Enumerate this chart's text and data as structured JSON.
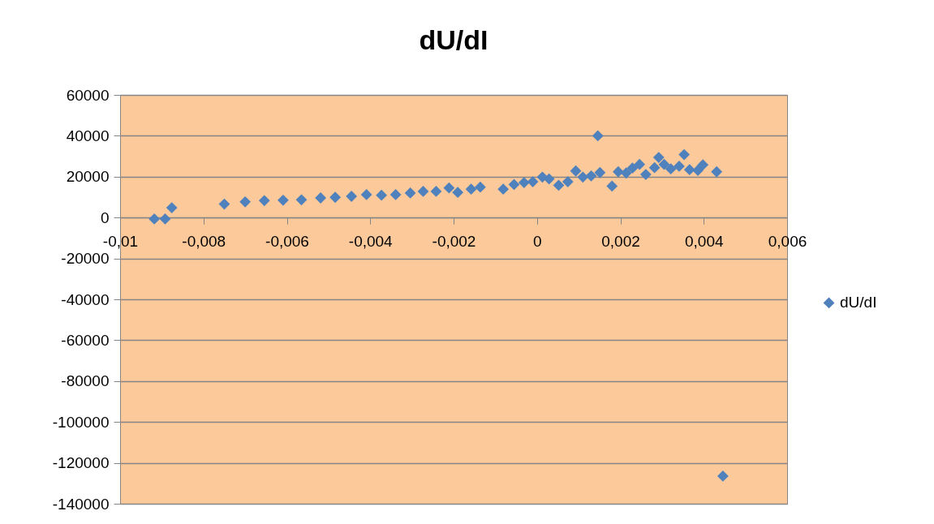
{
  "chart_data": {
    "type": "scatter",
    "title": "dU/dI",
    "x": [
      -0.00918,
      -0.00892,
      -0.00876,
      -0.0075,
      -0.007,
      -0.00654,
      -0.00609,
      -0.00565,
      -0.00519,
      -0.00484,
      -0.00445,
      -0.00409,
      -0.00373,
      -0.00339,
      -0.00304,
      -0.00273,
      -0.00242,
      -0.00211,
      -0.0019,
      -0.00158,
      -0.00136,
      -0.00081,
      -0.00055,
      -0.00031,
      -0.0001,
      0.00013,
      0.00029,
      0.00052,
      0.00074,
      0.00093,
      0.0011,
      0.0013,
      0.00151,
      0.00146,
      0.0018,
      0.00195,
      0.00214,
      0.00229,
      0.00246,
      0.00261,
      0.00282,
      0.00292,
      0.00305,
      0.00321,
      0.00341,
      0.00353,
      0.00366,
      0.00386,
      0.00398,
      0.00431,
      0.00446
    ],
    "series": [
      {
        "name": "dU/dI",
        "color": "#4f81bd",
        "values": [
          -700,
          -700,
          4800,
          6600,
          7700,
          8300,
          8500,
          8700,
          9600,
          9900,
          10400,
          11200,
          10900,
          11200,
          12000,
          12800,
          12800,
          14500,
          12300,
          13900,
          14900,
          13900,
          16200,
          17100,
          17500,
          19800,
          18900,
          15800,
          17500,
          22800,
          19800,
          20400,
          22000,
          40000,
          15400,
          22400,
          21800,
          24200,
          26000,
          21100,
          24400,
          29400,
          26000,
          23800,
          25100,
          30800,
          23400,
          23100,
          25800,
          22400,
          -126500
        ]
      }
    ],
    "xlim": [
      -0.01,
      0.006
    ],
    "xticks": [
      {
        "value": -0.01,
        "label": "-0,01"
      },
      {
        "value": -0.008,
        "label": "-0,008"
      },
      {
        "value": -0.006,
        "label": "-0,006"
      },
      {
        "value": -0.004,
        "label": "-0,004"
      },
      {
        "value": -0.002,
        "label": "-0,002"
      },
      0,
      {
        "value": 0.002,
        "label": "0,002"
      },
      {
        "value": 0.004,
        "label": "0,004"
      },
      {
        "value": 0.006,
        "label": "0,006"
      }
    ],
    "ylim": [
      -140000,
      60000
    ],
    "yticks": [
      -140000,
      -120000,
      -100000,
      -80000,
      -60000,
      -40000,
      -20000,
      0,
      20000,
      40000,
      60000
    ],
    "grid": "y",
    "legend": "right",
    "marker": "diamond"
  }
}
